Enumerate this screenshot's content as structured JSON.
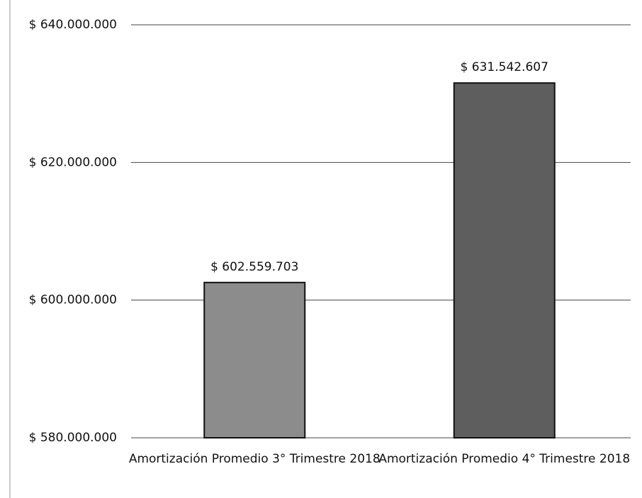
{
  "chart_data": {
    "type": "bar",
    "categories": [
      "Amortización Promedio 3° Trimestre 2018",
      "Amortización Promedio 4° Trimestre 2018"
    ],
    "values": [
      602559703,
      631542607
    ],
    "value_labels": [
      "$ 602.559.703",
      "$ 631.542.607"
    ],
    "colors": [
      "#8c8c8c",
      "#5e5e5e"
    ],
    "ylim": [
      580000000,
      640000000
    ],
    "yticks": [
      {
        "value": 580000000,
        "label": "$ 580.000.000"
      },
      {
        "value": 600000000,
        "label": "$ 600.000.000"
      },
      {
        "value": 620000000,
        "label": "$ 620.000.000"
      },
      {
        "value": 640000000,
        "label": "$ 640.000.000"
      }
    ],
    "grid": true
  }
}
